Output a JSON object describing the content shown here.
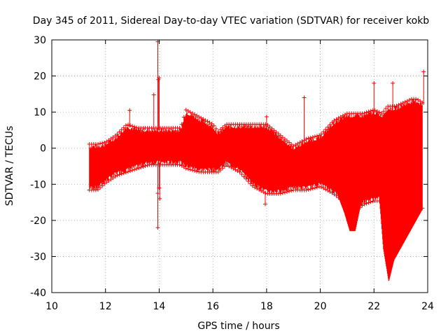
{
  "chart_data": {
    "type": "scatter",
    "title": "Day 345 of 2011, Sidereal Day-to-day VTEC variation (SDTVAR) for receiver kokb",
    "xlabel": "GPS time / hours",
    "ylabel": "SDTVAR / TECUs",
    "xlim": [
      10,
      24
    ],
    "ylim": [
      -40,
      30
    ],
    "xticks": [
      10,
      12,
      14,
      16,
      18,
      20,
      22,
      24
    ],
    "yticks": [
      -40,
      -30,
      -20,
      -10,
      0,
      10,
      20,
      30
    ],
    "xtick_labels": [
      "10",
      "12",
      "14",
      "16",
      "18",
      "20",
      "22",
      "24"
    ],
    "ytick_labels": [
      "-40",
      "-30",
      "-20",
      "-10",
      "0",
      "10",
      "20",
      "30"
    ],
    "grid": true,
    "marker_color": "#ff0000",
    "series": [
      {
        "name": "SDTVAR band envelope",
        "x": [
          11.4,
          11.7,
          12.0,
          12.4,
          12.8,
          13.2,
          13.6,
          14.0,
          14.4,
          14.8,
          15.0,
          15.5,
          16.0,
          16.2,
          16.5,
          17.0,
          17.5,
          18.0,
          18.5,
          19.0,
          19.5,
          20.0,
          20.5,
          21.0,
          21.3,
          21.6,
          22.0,
          22.3,
          22.5,
          22.8,
          23.1,
          23.4,
          23.6,
          23.8
        ],
        "upper": [
          0.5,
          0.5,
          1,
          3,
          6,
          5,
          5,
          5,
          5,
          5,
          10,
          8,
          6,
          4,
          6,
          6,
          6,
          6,
          3,
          0,
          2,
          3,
          7,
          9,
          9,
          9,
          10,
          9,
          11,
          11,
          12,
          13,
          13,
          12
        ],
        "lower": [
          -11,
          -11,
          -9,
          -7,
          -6,
          -5,
          -4,
          -4,
          -4,
          -4,
          -5,
          -6,
          -6,
          -6,
          -4,
          -6,
          -10,
          -12,
          -12,
          -11,
          -11,
          -10,
          -12,
          -15,
          -17,
          -15,
          -14,
          -14,
          -14,
          -16,
          -18,
          -17,
          -17,
          -16
        ]
      },
      {
        "name": "SDTVAR dips",
        "dip1_x": [
          20.6,
          20.9,
          21.1,
          21.3,
          21.5
        ],
        "dip1_y": [
          -12,
          -18,
          -23,
          -23,
          -16
        ],
        "dip2_x": [
          22.2,
          22.35,
          22.55,
          22.75,
          22.9,
          23.2,
          23.5,
          23.8
        ],
        "dip2_y": [
          -14,
          -28,
          -37,
          -31,
          -29,
          -25,
          -21,
          -17
        ]
      },
      {
        "name": "SDTVAR outliers",
        "x": [
          13.95,
          13.95,
          13.97,
          14.0,
          14.02,
          17.95,
          18.0,
          19.4,
          22.0,
          22.7,
          23.85,
          13.95,
          14.0,
          13.8,
          12.9
        ],
        "y": [
          29.5,
          -22,
          19,
          19.5,
          -14,
          -15.5,
          8.7,
          14,
          18,
          18,
          21.2,
          -12.5,
          -11,
          14.8,
          10.5
        ]
      }
    ]
  }
}
